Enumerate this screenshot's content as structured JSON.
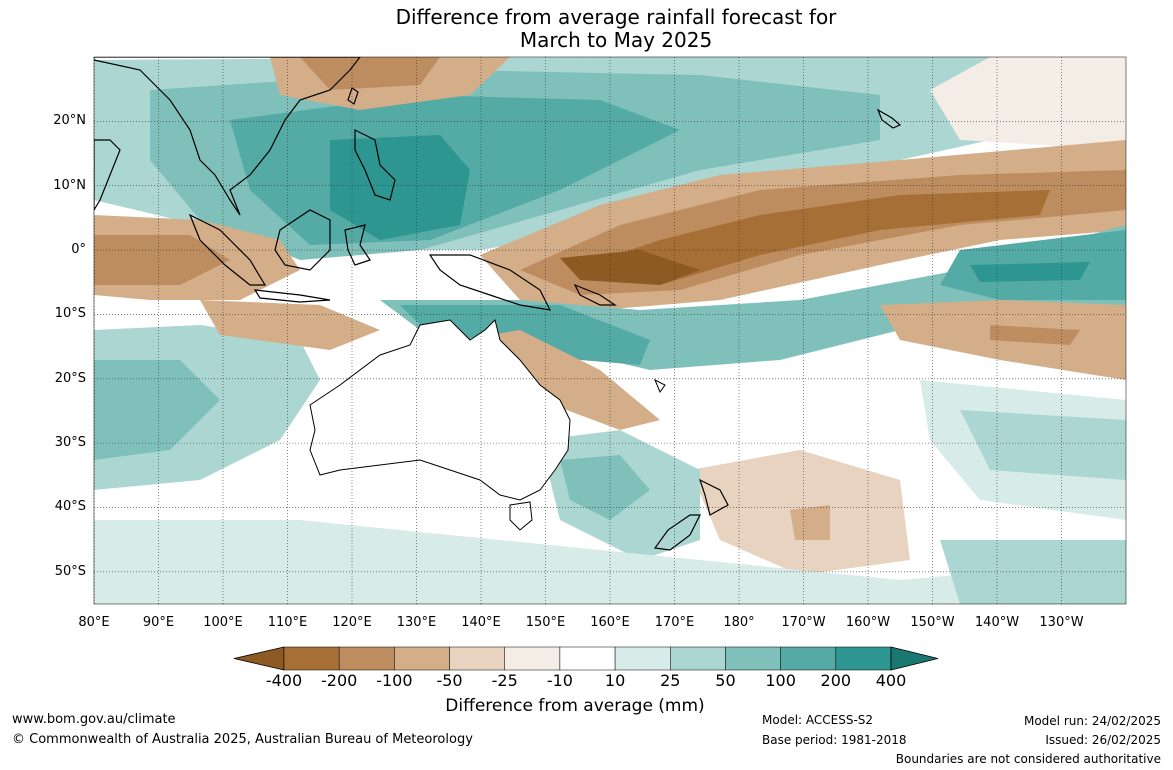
{
  "title_line1": "Difference from average rainfall forecast for",
  "title_line2": "March to May 2025",
  "map": {
    "lat_labels": [
      "20°N",
      "10°N",
      "0°",
      "10°S",
      "20°S",
      "30°S",
      "40°S",
      "50°S"
    ],
    "lat_values": [
      20,
      10,
      0,
      -10,
      -20,
      -30,
      -40,
      -50
    ],
    "lon_labels": [
      "80°E",
      "90°E",
      "100°E",
      "110°E",
      "120°E",
      "130°E",
      "140°E",
      "150°E",
      "160°E",
      "170°E",
      "180°",
      "170°W",
      "160°W",
      "150°W",
      "140°W",
      "130°W"
    ],
    "lon_values": [
      80,
      90,
      100,
      110,
      120,
      130,
      140,
      150,
      160,
      170,
      180,
      190,
      200,
      210,
      220,
      230
    ],
    "lon_range": [
      80,
      240
    ],
    "lat_range": [
      -55,
      30
    ]
  },
  "colorbar": {
    "title": "Difference from average (mm)",
    "tick_labels": [
      "-400",
      "-200",
      "-100",
      "-50",
      "-25",
      "-10",
      "10",
      "25",
      "50",
      "100",
      "200",
      "400"
    ],
    "colors": [
      "#8c5a22",
      "#a66f36",
      "#bd8d60",
      "#d3ae89",
      "#e7d3bf",
      "#f3ede6",
      "#ffffff",
      "#d7ebe9",
      "#abd6d2",
      "#7fc0bb",
      "#54aaa5",
      "#2e9690",
      "#1a7873"
    ]
  },
  "footer": {
    "website": "www.bom.gov.au/climate",
    "copyright": "© Commonwealth of Australia 2025, Australian Bureau of Meteorology",
    "model": "Model: ACCESS-S2",
    "base_period": "Base period: 1981-2018",
    "model_run": "Model run: 24/02/2025",
    "issued": "Issued: 26/02/2025",
    "disclaimer": "Boundaries are not considered authoritative"
  }
}
